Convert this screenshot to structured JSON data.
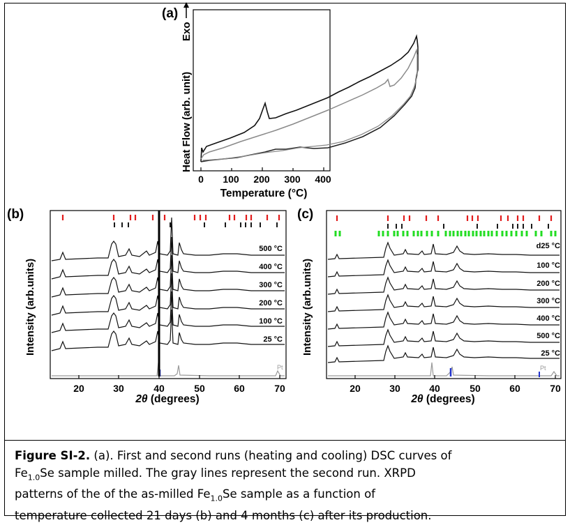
{
  "figure": {
    "panel_a": {
      "label": "(a)",
      "exo_label": "Exo",
      "ylabel": "Heat Flow (arb. unit)",
      "xlabel": "Temperature (°C)",
      "x_ticks": [
        "0",
        "100",
        "200",
        "300",
        "400"
      ]
    },
    "panel_b": {
      "label": "(b)",
      "ylabel": "Intensity (arb.units)",
      "xlabel_italic": "2θ",
      "xlabel_rest": " (degrees)",
      "x_ticks": [
        "20",
        "30",
        "40",
        "50",
        "60",
        "70"
      ],
      "curve_labels": [
        "500 °C",
        "400 °C",
        "300 °C",
        "200 °C",
        "100 °C",
        "25 °C"
      ],
      "pt_label": "Pt"
    },
    "panel_c": {
      "label": "(c)",
      "ylabel": "Intensity (arb.units)",
      "xlabel_italic": "2θ",
      "xlabel_rest": " (degrees)",
      "x_ticks": [
        "20",
        "30",
        "40",
        "50",
        "60",
        "70"
      ],
      "curve_labels": [
        "d25 °C",
        "100 °C",
        "200 °C",
        "300 °C",
        "400 °C",
        "500 °C",
        "25 °C"
      ],
      "pt_label": "Pt"
    },
    "colors": {
      "first_run": "#111111",
      "second_run": "#8a8a8a",
      "tick_red": "#e21b1b",
      "tick_black": "#000000",
      "tick_green": "#22dd22",
      "tick_blue": "#2233cc",
      "pt_gray": "#9a9a9a"
    }
  },
  "caption": {
    "title": "Figure SI-2.",
    "line1": " (a). First and second runs (heating and cooling) DSC curves of",
    "line2_a": "Fe",
    "line2_sub": "1.0",
    "line2_b": "Se sample milled. The gray lines represent the second run.  XRPD",
    "line3_a": "patterns of the of the as-milled Fe",
    "line3_sub": "1.0",
    "line3_b": "Se sample as a function of",
    "line4": "temperature collected 21 days (b) and 4 months (c) after its production."
  }
}
